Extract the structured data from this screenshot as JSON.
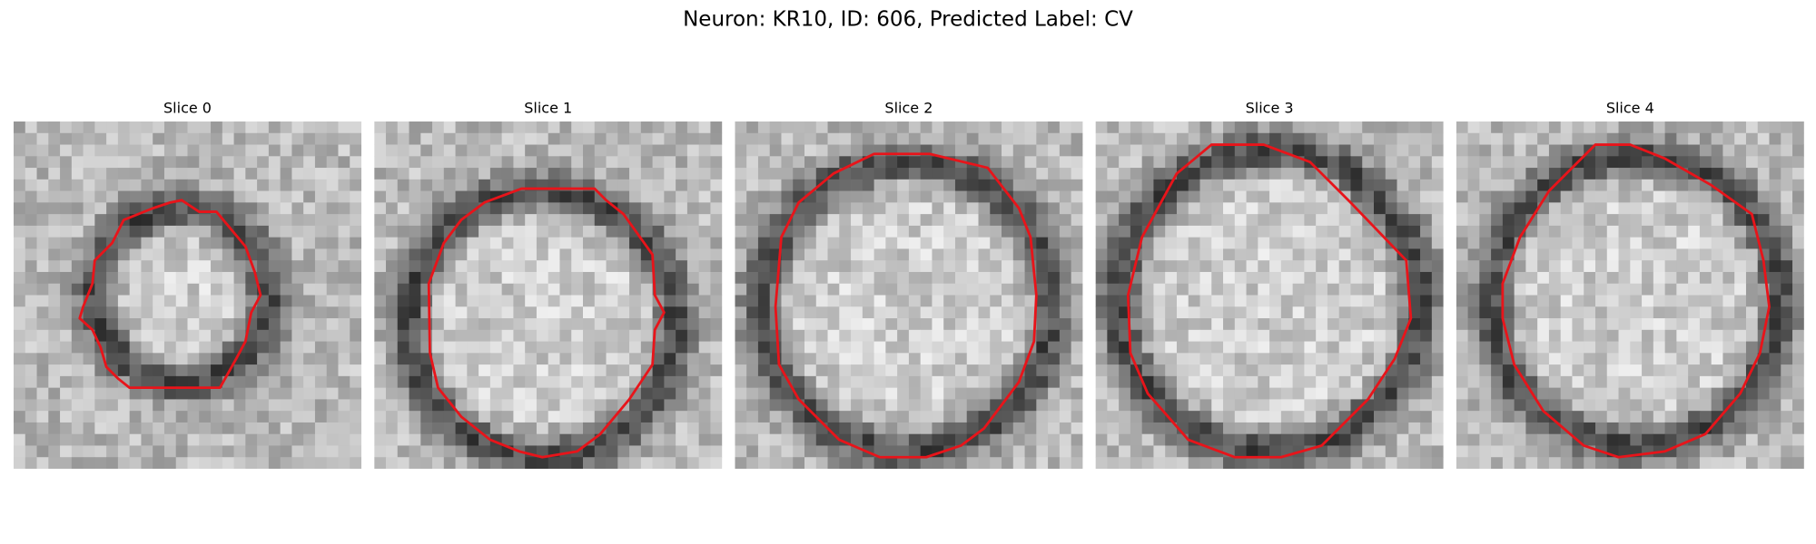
{
  "title": "Neuron: KR10, ID: 606, Predicted Label: CV",
  "panels": [
    {
      "title": "Slice 0"
    },
    {
      "title": "Slice 1"
    },
    {
      "title": "Slice 2"
    },
    {
      "title": "Slice 3"
    },
    {
      "title": "Slice 4"
    }
  ]
}
